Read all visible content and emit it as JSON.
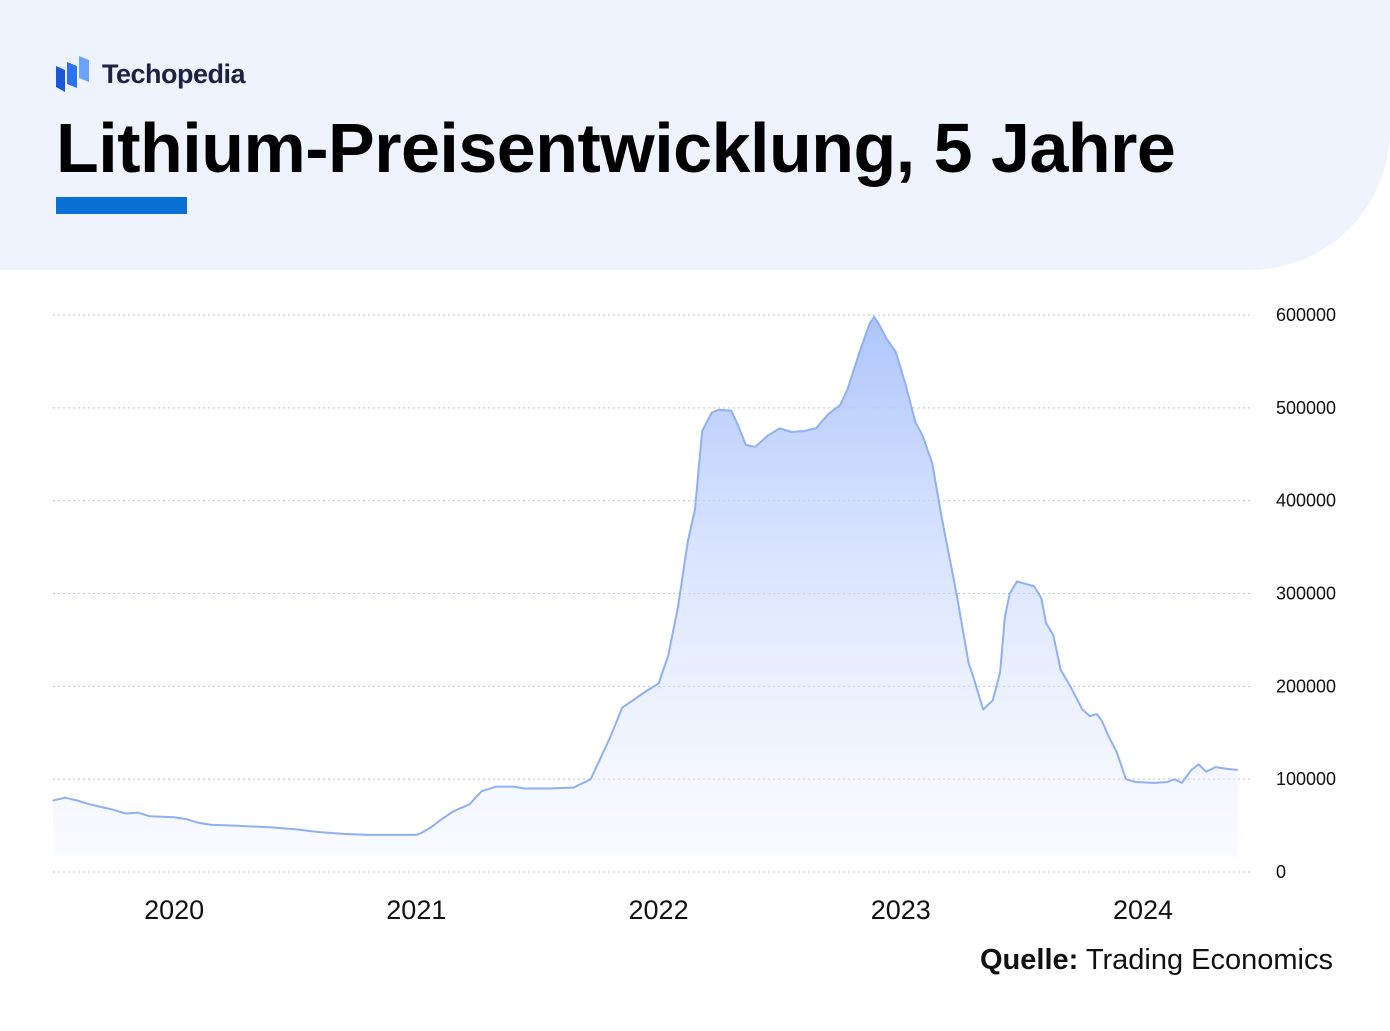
{
  "brand": {
    "name": "Techopedia",
    "logo_icon": "techopedia-logo-icon"
  },
  "title": "Lithium-Preisentwicklung, 5 Jahre",
  "colors": {
    "accent": "#0a6fd2",
    "line": "#8fb0f3",
    "fill_top": "#b3c9fb",
    "header_bg": "#eef3fd"
  },
  "source": {
    "label": "Quelle:",
    "text": "Trading Economics"
  },
  "chart_data": {
    "type": "area",
    "title": "Lithium-Preisentwicklung, 5 Jahre",
    "xlabel": "",
    "ylabel": "",
    "y_axis_position": "right",
    "grid": true,
    "xlim": [
      2019.5,
      2024.45
    ],
    "ylim": [
      0,
      600000
    ],
    "yticks": [
      "0",
      "100000",
      "200000",
      "300000",
      "400000",
      "500000",
      "600000"
    ],
    "ytick_values": [
      0,
      100000,
      200000,
      300000,
      400000,
      500000,
      600000
    ],
    "xticks": [
      "2020",
      "2021",
      "2022",
      "2023",
      "2024"
    ],
    "xtick_values": [
      2020,
      2021,
      2022,
      2023,
      2024
    ],
    "series": [
      {
        "name": "Lithium",
        "points": [
          [
            2019.5,
            77000
          ],
          [
            2019.55,
            80000
          ],
          [
            2019.6,
            77000
          ],
          [
            2019.65,
            73000
          ],
          [
            2019.7,
            70000
          ],
          [
            2019.75,
            67000
          ],
          [
            2019.8,
            63000
          ],
          [
            2019.85,
            64000
          ],
          [
            2019.9,
            60000
          ],
          [
            2020.0,
            59000
          ],
          [
            2020.05,
            57000
          ],
          [
            2020.1,
            53000
          ],
          [
            2020.15,
            51000
          ],
          [
            2020.25,
            50000
          ],
          [
            2020.4,
            48000
          ],
          [
            2020.5,
            46000
          ],
          [
            2020.6,
            43000
          ],
          [
            2020.7,
            41000
          ],
          [
            2020.8,
            40000
          ],
          [
            2021.0,
            40000
          ],
          [
            2021.02,
            42000
          ],
          [
            2021.06,
            48000
          ],
          [
            2021.1,
            56000
          ],
          [
            2021.15,
            65000
          ],
          [
            2021.22,
            73000
          ],
          [
            2021.27,
            87000
          ],
          [
            2021.33,
            92000
          ],
          [
            2021.4,
            92000
          ],
          [
            2021.45,
            90000
          ],
          [
            2021.55,
            90000
          ],
          [
            2021.65,
            91000
          ],
          [
            2021.72,
            100000
          ],
          [
            2021.8,
            145000
          ],
          [
            2021.85,
            177000
          ],
          [
            2021.9,
            186000
          ],
          [
            2021.95,
            195000
          ],
          [
            2022.0,
            203000
          ],
          [
            2022.04,
            233000
          ],
          [
            2022.08,
            285000
          ],
          [
            2022.1,
            320000
          ],
          [
            2022.12,
            355000
          ],
          [
            2022.15,
            390000
          ],
          [
            2022.18,
            475000
          ],
          [
            2022.22,
            495000
          ],
          [
            2022.25,
            498000
          ],
          [
            2022.3,
            497000
          ],
          [
            2022.33,
            480000
          ],
          [
            2022.36,
            460000
          ],
          [
            2022.4,
            458000
          ],
          [
            2022.45,
            470000
          ],
          [
            2022.5,
            478000
          ],
          [
            2022.55,
            474000
          ],
          [
            2022.6,
            475000
          ],
          [
            2022.65,
            478000
          ],
          [
            2022.7,
            493000
          ],
          [
            2022.75,
            503000
          ],
          [
            2022.78,
            520000
          ],
          [
            2022.83,
            560000
          ],
          [
            2022.87,
            590000
          ],
          [
            2022.89,
            598000
          ],
          [
            2022.91,
            590000
          ],
          [
            2022.94,
            575000
          ],
          [
            2022.98,
            560000
          ],
          [
            2023.02,
            525000
          ],
          [
            2023.06,
            485000
          ],
          [
            2023.09,
            470000
          ],
          [
            2023.13,
            440000
          ],
          [
            2023.17,
            380000
          ],
          [
            2023.23,
            300000
          ],
          [
            2023.28,
            225000
          ],
          [
            2023.3,
            210000
          ],
          [
            2023.34,
            175000
          ],
          [
            2023.38,
            185000
          ],
          [
            2023.41,
            215000
          ],
          [
            2023.43,
            275000
          ],
          [
            2023.45,
            300000
          ],
          [
            2023.48,
            313000
          ],
          [
            2023.52,
            310000
          ],
          [
            2023.55,
            308000
          ],
          [
            2023.58,
            295000
          ],
          [
            2023.6,
            268000
          ],
          [
            2023.63,
            255000
          ],
          [
            2023.66,
            218000
          ],
          [
            2023.7,
            200000
          ],
          [
            2023.75,
            175000
          ],
          [
            2023.78,
            168000
          ],
          [
            2023.81,
            170000
          ],
          [
            2023.83,
            163000
          ],
          [
            2023.86,
            145000
          ],
          [
            2023.89,
            130000
          ],
          [
            2023.93,
            100000
          ],
          [
            2023.97,
            97000
          ],
          [
            2024.05,
            96000
          ],
          [
            2024.1,
            97000
          ],
          [
            2024.13,
            100000
          ],
          [
            2024.16,
            96000
          ],
          [
            2024.2,
            110000
          ],
          [
            2024.23,
            116000
          ],
          [
            2024.26,
            108000
          ],
          [
            2024.3,
            113000
          ],
          [
            2024.35,
            111000
          ],
          [
            2024.39,
            110000
          ]
        ]
      }
    ]
  }
}
